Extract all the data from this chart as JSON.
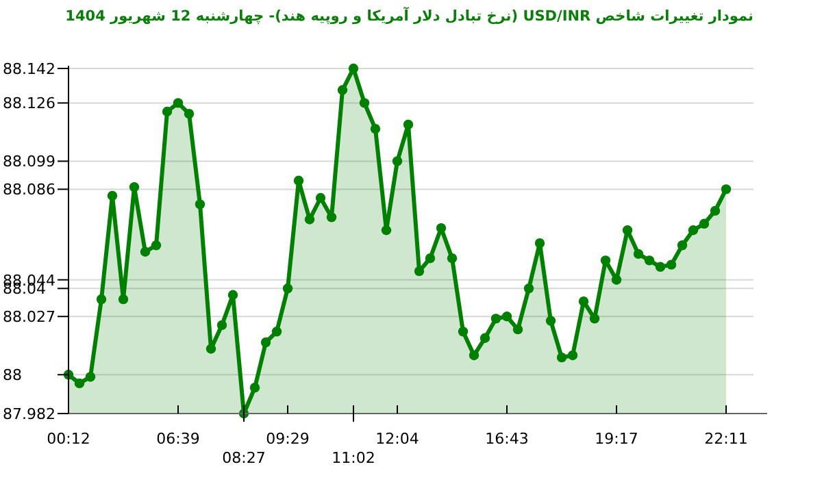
{
  "chart_data": {
    "type": "area",
    "title": "نمودار تغییرات شاخص USD/INR (نرخ تبادل دلار آمریکا و روپیه هند)- چهارشنبه  12 شهریور 1404",
    "categories": [
      "00:12",
      null,
      null,
      null,
      null,
      null,
      null,
      null,
      null,
      null,
      "06:39",
      null,
      null,
      null,
      null,
      null,
      "08:27",
      null,
      null,
      null,
      "09:29",
      null,
      null,
      null,
      null,
      null,
      "11:02",
      null,
      null,
      null,
      "12:04",
      null,
      null,
      null,
      null,
      null,
      null,
      null,
      null,
      null,
      "16:43",
      null,
      null,
      null,
      null,
      null,
      null,
      null,
      null,
      null,
      "19:17",
      null,
      null,
      null,
      null,
      null,
      null,
      null,
      null,
      null,
      "22:11"
    ],
    "series": [
      {
        "color": "#008000",
        "values": [
          88.0,
          87.996,
          87.999,
          88.035,
          88.083,
          88.035,
          88.087,
          88.057,
          88.06,
          88.122,
          88.126,
          88.121,
          88.079,
          88.012,
          88.023,
          88.037,
          87.982,
          87.994,
          88.015,
          88.02,
          88.04,
          88.09,
          88.072,
          88.082,
          88.073,
          88.132,
          88.142,
          88.126,
          88.114,
          88.067,
          88.099,
          88.116,
          88.048,
          88.054,
          88.068,
          88.054,
          88.02,
          88.009,
          88.017,
          88.026,
          88.027,
          88.021,
          88.04,
          88.061,
          88.025,
          88.008,
          88.009,
          88.034,
          88.026,
          88.053,
          88.044,
          88.067,
          88.056,
          88.053,
          88.05,
          88.051,
          88.06,
          88.067,
          88.07,
          88.076,
          88.086
        ]
      }
    ],
    "ylim": [
      87.982,
      88.142
    ],
    "yticks": [
      87.982,
      88,
      88.027,
      88.04,
      88.044,
      88.086,
      88.099,
      88.126,
      88.142
    ],
    "grid": "y",
    "marker": "circle",
    "line_style": "solid"
  }
}
